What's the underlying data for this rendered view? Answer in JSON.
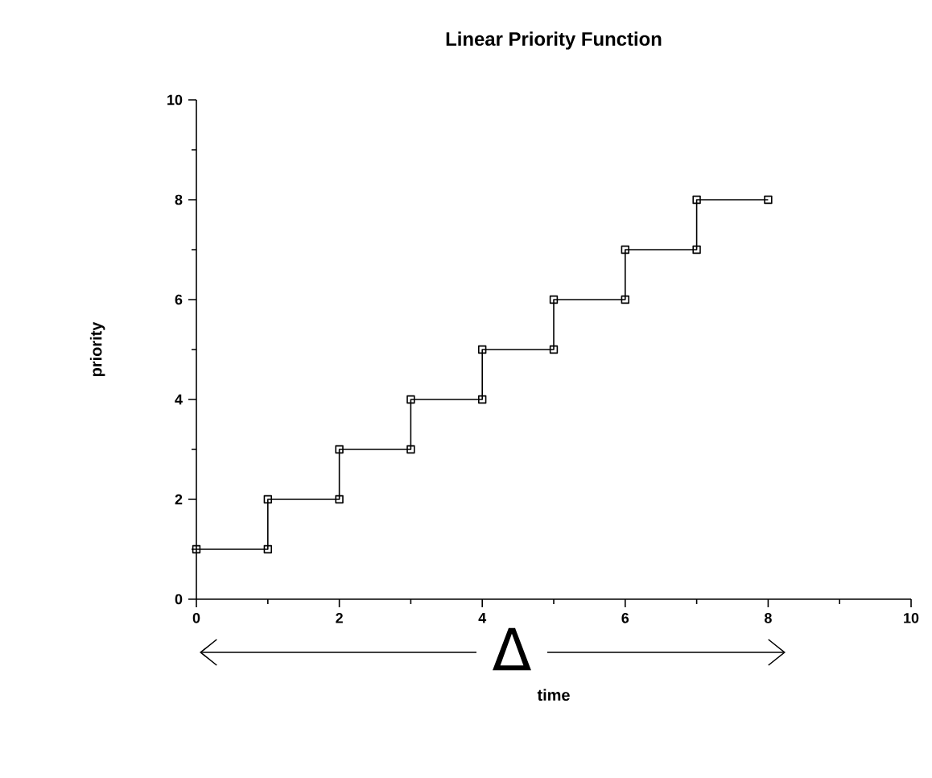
{
  "chart_data": {
    "type": "line",
    "title": "Linear   Priority   Function",
    "xlabel": "time",
    "ylabel": "priority",
    "x": [
      0,
      1,
      1,
      2,
      2,
      3,
      3,
      4,
      4,
      5,
      5,
      6,
      6,
      7,
      7,
      8
    ],
    "series": [
      {
        "color": "#000000",
        "values": [
          1,
          1,
          2,
          2,
          3,
          3,
          4,
          4,
          5,
          5,
          6,
          6,
          7,
          7,
          8,
          8
        ]
      }
    ],
    "xlim": [
      0,
      10
    ],
    "ylim": [
      0,
      10
    ],
    "xticks": [
      0,
      2,
      4,
      6,
      8,
      10
    ],
    "yticks": [
      0,
      2,
      4,
      6,
      8,
      10
    ],
    "marker": "square",
    "line_style": "solid",
    "annotations": [
      "Δ"
    ]
  }
}
